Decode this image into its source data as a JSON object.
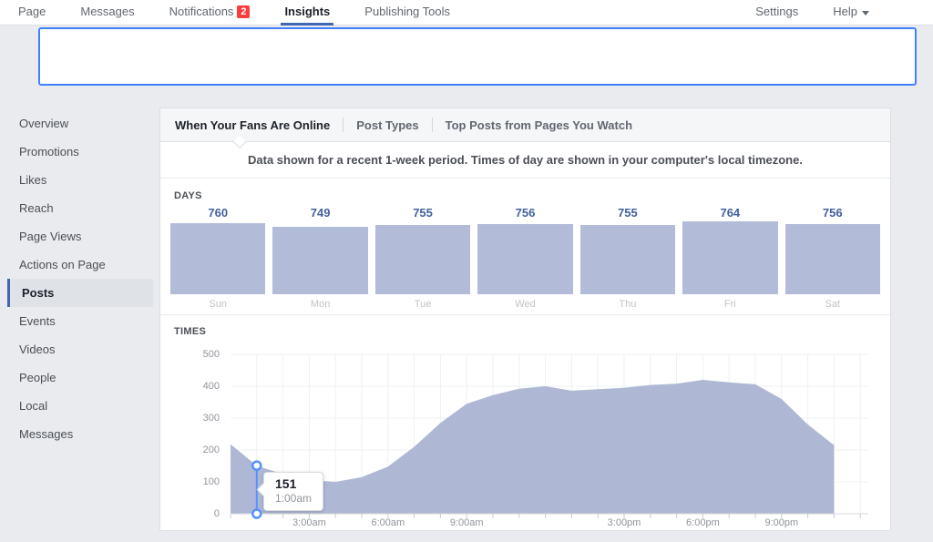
{
  "nav": {
    "items": [
      {
        "label": "Page"
      },
      {
        "label": "Messages"
      },
      {
        "label": "Notifications",
        "badge": "2"
      },
      {
        "label": "Insights",
        "active": true
      },
      {
        "label": "Publishing Tools"
      }
    ],
    "right_items": [
      {
        "label": "Settings"
      },
      {
        "label": "Help",
        "has_caret": true
      }
    ]
  },
  "sidebar": {
    "items": [
      {
        "label": "Overview"
      },
      {
        "label": "Promotions"
      },
      {
        "label": "Likes"
      },
      {
        "label": "Reach"
      },
      {
        "label": "Page Views"
      },
      {
        "label": "Actions on Page"
      },
      {
        "label": "Posts",
        "active": true
      },
      {
        "label": "Events"
      },
      {
        "label": "Videos"
      },
      {
        "label": "People"
      },
      {
        "label": "Local"
      },
      {
        "label": "Messages"
      }
    ]
  },
  "tabs": [
    {
      "label": "When Your Fans Are Online",
      "active": true
    },
    {
      "label": "Post Types",
      "active": false
    },
    {
      "label": "Top Posts from Pages You Watch",
      "active": false
    }
  ],
  "notice": "Data shown for a recent 1-week period. Times of day are shown in your computer's local timezone.",
  "chart_data": [
    {
      "type": "bar",
      "title": "DAYS",
      "categories": [
        "Sun",
        "Mon",
        "Tue",
        "Wed",
        "Thu",
        "Fri",
        "Sat"
      ],
      "values": [
        760,
        749,
        755,
        756,
        755,
        764,
        756
      ],
      "bar_color": "#b2bcd8",
      "value_label_color": "#44619d"
    },
    {
      "type": "area",
      "title": "TIMES",
      "x_hours": [
        0,
        1,
        2,
        3,
        4,
        5,
        6,
        7,
        8,
        9,
        10,
        11,
        12,
        13,
        14,
        15,
        16,
        17,
        18,
        19,
        20,
        21,
        22,
        23
      ],
      "values": [
        218,
        151,
        124,
        106,
        100,
        115,
        148,
        210,
        285,
        345,
        372,
        392,
        400,
        386,
        391,
        395,
        404,
        408,
        420,
        412,
        406,
        360,
        280,
        215
      ],
      "ylim": [
        0,
        500
      ],
      "yticks": [
        0,
        100,
        200,
        300,
        400,
        500
      ],
      "xticks": [
        {
          "hour": 3,
          "label": "3:00am"
        },
        {
          "hour": 6,
          "label": "6:00am"
        },
        {
          "hour": 9,
          "label": "9:00am"
        },
        {
          "hour": 15,
          "label": "3:00pm"
        },
        {
          "hour": 18,
          "label": "6:00pm"
        },
        {
          "hour": 21,
          "label": "9:00pm"
        }
      ],
      "grid": true,
      "area_color": "#aeb8d4",
      "tooltip": {
        "value": "151",
        "time": "1:00am",
        "hour": 1
      }
    }
  ],
  "colors": {
    "accent_blue": "#4267b2",
    "bright_blue": "#4080ff",
    "marker_blue": "#5890ff",
    "badge_red": "#fa3e3e",
    "page_bg": "#e9ebee"
  }
}
